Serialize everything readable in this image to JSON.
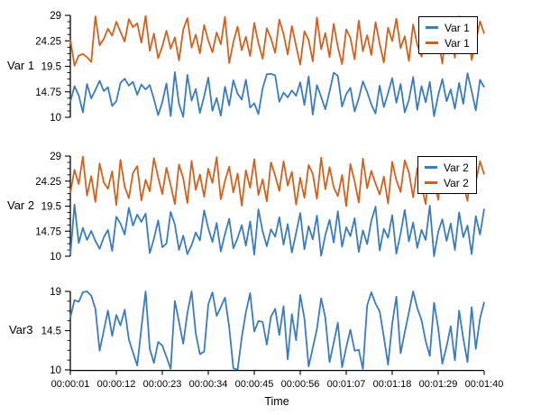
{
  "figure": {
    "xlabel": "Time"
  },
  "colors": {
    "blue": "#3A7CBF",
    "orange": "#D2611E",
    "axis": "#000000",
    "background": "#ffffff"
  },
  "chart_data": [
    {
      "type": "line",
      "ylabel": "Var 1",
      "ylim": [
        10,
        29
      ],
      "yticks": [
        10,
        14.75,
        19.5,
        24.25,
        29
      ],
      "ytick_labels": [
        "10",
        "14.75",
        "19.5",
        "24.25",
        "29"
      ],
      "x_range": [
        1,
        100
      ],
      "legend_position": "top-right",
      "grid": false,
      "series": [
        {
          "name": "Var 1",
          "color": "#3A7CBF",
          "values": [
            12.9,
            15.8,
            14.1,
            10.9,
            16.2,
            13.5,
            15.1,
            16.8,
            14.9,
            15.6,
            12.1,
            13.0,
            16.4,
            17.2,
            15.9,
            16.6,
            14.2,
            16.1,
            15.2,
            16.0,
            13.4,
            10.4,
            12.8,
            16.3,
            10.2,
            18.4,
            12.5,
            10.1,
            17.9,
            13.1,
            15.3,
            10.8,
            13.9,
            17.4,
            11.2,
            13.6,
            10.3,
            15.7,
            12.2,
            16.9,
            14.4,
            13.3,
            17.0,
            11.8,
            12.6,
            10.6,
            15.4,
            18.0,
            18.1,
            17.8,
            12.9,
            14.6,
            13.7,
            15.0,
            14.0,
            16.5,
            12.3,
            17.6,
            10.5,
            16.0,
            13.8,
            11.5,
            14.8,
            18.3,
            17.7,
            12.0,
            14.3,
            15.5,
            11.1,
            13.5,
            16.7,
            14.7,
            12.4,
            10.7,
            15.9,
            11.9,
            14.5,
            17.3,
            12.7,
            16.2,
            10.9,
            13.2,
            17.5,
            11.4,
            15.8,
            12.8,
            16.6,
            10.2,
            14.1,
            17.1,
            13.0,
            15.2,
            11.6,
            16.4,
            12.5,
            18.2,
            14.9,
            11.3,
            17.0,
            15.6
          ]
        },
        {
          "name": "Var 1",
          "color": "#D2611E",
          "values": [
            24.5,
            19.6,
            21.5,
            21.8,
            21.2,
            20.3,
            28.8,
            23.4,
            24.6,
            26.5,
            25.2,
            27.8,
            25.9,
            24.1,
            28.3,
            26.8,
            27.5,
            23.9,
            28.9,
            22.4,
            25.6,
            21.0,
            23.2,
            26.1,
            22.8,
            24.9,
            20.6,
            26.3,
            28.5,
            23.0,
            25.4,
            21.9,
            27.2,
            24.3,
            22.1,
            25.8,
            23.6,
            28.7,
            20.1,
            24.0,
            26.9,
            22.5,
            25.0,
            21.4,
            27.6,
            23.8,
            20.9,
            26.6,
            24.7,
            22.0,
            28.2,
            25.5,
            21.7,
            27.0,
            23.3,
            19.8,
            26.0,
            24.4,
            20.4,
            28.6,
            22.7,
            25.7,
            21.2,
            27.4,
            23.1,
            19.9,
            26.4,
            24.8,
            20.8,
            28.0,
            22.3,
            25.3,
            21.6,
            27.7,
            23.7,
            20.2,
            26.7,
            24.2,
            28.4,
            22.9,
            25.1,
            20.5,
            27.3,
            23.5,
            21.3,
            26.2,
            28.1,
            22.6,
            24.5,
            20.0,
            27.1,
            25.9,
            21.1,
            28.8,
            23.0,
            26.5,
            20.7,
            24.1,
            27.9,
            25.6
          ]
        }
      ]
    },
    {
      "type": "line",
      "ylabel": "Var 2",
      "ylim": [
        10,
        29
      ],
      "yticks": [
        10,
        14.75,
        19.5,
        24.25,
        29
      ],
      "ytick_labels": [
        "10",
        "14.75",
        "19.5",
        "24.25",
        "29"
      ],
      "x_range": [
        1,
        100
      ],
      "legend_position": "top-right",
      "grid": false,
      "series": [
        {
          "name": "Var 2",
          "color": "#3A7CBF",
          "values": [
            10.2,
            19.8,
            12.5,
            15.4,
            13.1,
            14.8,
            12.9,
            11.4,
            13.6,
            15.0,
            11.0,
            17.5,
            16.2,
            14.1,
            19.2,
            15.8,
            17.9,
            16.5,
            18.1,
            10.6,
            13.3,
            16.8,
            11.7,
            12.4,
            18.4,
            16.0,
            11.2,
            13.9,
            10.4,
            12.1,
            14.5,
            13.0,
            18.7,
            15.3,
            12.7,
            16.3,
            10.9,
            14.2,
            17.1,
            11.5,
            13.4,
            15.9,
            12.0,
            16.6,
            10.3,
            18.9,
            14.7,
            11.9,
            15.1,
            13.7,
            17.4,
            12.2,
            16.1,
            10.7,
            14.4,
            18.2,
            11.3,
            15.7,
            13.2,
            17.7,
            10.1,
            14.0,
            16.9,
            12.6,
            18.5,
            11.8,
            15.5,
            13.8,
            17.2,
            10.8,
            14.9,
            12.3,
            16.7,
            19.4,
            11.1,
            15.2,
            13.5,
            17.8,
            10.5,
            14.3,
            18.8,
            12.8,
            16.4,
            11.6,
            15.0,
            13.1,
            19.6,
            10.0,
            14.6,
            17.0,
            12.9,
            16.2,
            11.2,
            18.3,
            13.6,
            15.8,
            10.4,
            17.6,
            14.1,
            19.0
          ]
        },
        {
          "name": "Var 2",
          "color": "#D2611E",
          "values": [
            22.0,
            26.4,
            23.7,
            28.9,
            21.5,
            25.2,
            20.3,
            27.6,
            24.0,
            22.8,
            26.1,
            19.7,
            28.3,
            23.2,
            21.0,
            25.8,
            27.1,
            20.6,
            24.5,
            22.3,
            28.6,
            25.0,
            21.8,
            26.8,
            23.5,
            19.9,
            27.4,
            24.8,
            20.1,
            28.1,
            22.6,
            25.5,
            21.3,
            26.6,
            23.9,
            28.8,
            20.8,
            24.3,
            27.0,
            22.1,
            25.7,
            19.6,
            26.3,
            23.0,
            28.4,
            21.6,
            24.6,
            20.4,
            27.8,
            25.3,
            22.4,
            28.0,
            23.4,
            26.0,
            19.8,
            24.9,
            21.1,
            27.3,
            25.6,
            20.9,
            28.7,
            22.7,
            26.9,
            23.1,
            21.4,
            25.4,
            19.5,
            27.5,
            24.2,
            20.2,
            28.5,
            22.9,
            26.2,
            23.8,
            21.7,
            25.1,
            20.0,
            27.9,
            24.4,
            22.2,
            28.2,
            25.9,
            21.2,
            26.7,
            23.3,
            19.9,
            27.2,
            24.7,
            20.7,
            28.9,
            22.5,
            25.8,
            21.9,
            26.5,
            23.6,
            20.5,
            27.7,
            24.1,
            28.0,
            25.5
          ]
        }
      ]
    },
    {
      "type": "line",
      "ylabel": "Var3",
      "ylim": [
        10,
        19
      ],
      "yticks": [
        10,
        14.5,
        19
      ],
      "ytick_labels": [
        "10",
        "14.5",
        "19"
      ],
      "x_range": [
        1,
        100
      ],
      "xticks": [
        1,
        12,
        23,
        34,
        45,
        56,
        67,
        78,
        89,
        100
      ],
      "xtick_labels": [
        "00:00:01",
        "00:00:12",
        "00:00:23",
        "00:00:34",
        "00:00:45",
        "00:00:56",
        "00:01:07",
        "00:01:18",
        "00:01:29",
        "00:01:40"
      ],
      "xlabel": "Time",
      "grid": false,
      "series": [
        {
          "name": "Var3",
          "color": "#3A7CBF",
          "values": [
            16.0,
            18.0,
            17.8,
            18.9,
            19.0,
            18.5,
            17.0,
            12.2,
            14.5,
            16.8,
            13.9,
            16.3,
            15.1,
            16.9,
            13.5,
            12.0,
            10.5,
            14.8,
            19.0,
            12.4,
            10.8,
            13.2,
            12.8,
            11.5,
            10.1,
            17.9,
            15.5,
            13.0,
            16.5,
            19.0,
            14.2,
            11.8,
            12.1,
            17.5,
            18.9,
            16.2,
            17.2,
            18.3,
            14.9,
            10.2,
            10.0,
            13.7,
            16.6,
            18.8,
            14.4,
            15.6,
            15.5,
            12.9,
            16.1,
            17.0,
            14.0,
            17.3,
            11.2,
            16.4,
            13.4,
            18.6,
            15.9,
            10.4,
            12.5,
            14.7,
            18.2,
            16.0,
            10.9,
            13.1,
            15.4,
            10.3,
            12.6,
            14.6,
            12.2,
            12.3,
            10.1,
            17.4,
            18.9,
            17.6,
            16.7,
            13.8,
            10.6,
            15.3,
            18.4,
            11.9,
            14.3,
            16.6,
            19.0,
            17.1,
            15.7,
            13.3,
            11.6,
            17.7,
            14.8,
            10.7,
            12.7,
            15.0,
            11.1,
            16.8,
            13.6,
            10.9,
            17.2,
            12.4,
            15.9,
            17.8
          ]
        }
      ]
    }
  ]
}
